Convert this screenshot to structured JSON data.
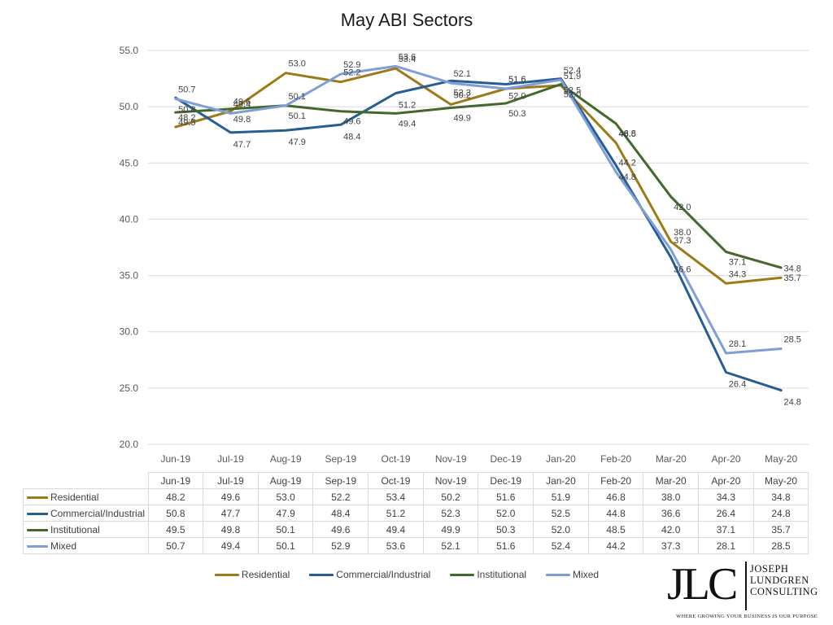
{
  "chart_data": {
    "type": "line",
    "title": "May ABI Sectors",
    "categories": [
      "Jun-19",
      "Jul-19",
      "Aug-19",
      "Sep-19",
      "Oct-19",
      "Nov-19",
      "Dec-19",
      "Jan-20",
      "Feb-20",
      "Mar-20",
      "Apr-20",
      "May-20"
    ],
    "yticks": [
      "20.0",
      "25.0",
      "30.0",
      "35.0",
      "40.0",
      "45.0",
      "50.0",
      "55.0"
    ],
    "ylim": [
      20,
      55
    ],
    "grid": true,
    "legend_position": "bottom",
    "series": [
      {
        "name": "Residential",
        "color": "#9c7a17",
        "values": [
          48.2,
          49.6,
          53.0,
          52.2,
          53.4,
          50.2,
          51.6,
          51.9,
          46.8,
          38.0,
          34.3,
          34.8
        ],
        "labels": [
          "48.2",
          "49.6",
          "53.0",
          "52.2",
          "53.4",
          "50.2",
          "51.6",
          "51.9",
          "46.8",
          "38.0",
          "34.3",
          "34.8"
        ]
      },
      {
        "name": "Commercial/Industrial",
        "color": "#255e91",
        "values": [
          50.8,
          47.7,
          47.9,
          48.4,
          51.2,
          52.3,
          52.0,
          52.5,
          44.8,
          36.6,
          26.4,
          24.8
        ],
        "labels": [
          "50.8",
          "47.7",
          "47.9",
          "48.4",
          "51.2",
          "52.3",
          "52.0",
          "52.5",
          "44.8",
          "36.6",
          "26.4",
          "24.8"
        ]
      },
      {
        "name": "Institutional",
        "color": "#43682b",
        "values": [
          49.5,
          49.8,
          50.1,
          49.6,
          49.4,
          49.9,
          50.3,
          52.0,
          48.5,
          42.0,
          37.1,
          35.7
        ],
        "labels": [
          "49.5",
          "49.8",
          "50.1",
          "49.6",
          "49.4",
          "49.9",
          "50.3",
          "52.0",
          "48.5",
          "42.0",
          "37.1",
          "35.7"
        ]
      },
      {
        "name": "Mixed",
        "color": "#7f9ed8",
        "values": [
          50.7,
          49.4,
          50.1,
          52.9,
          53.6,
          52.1,
          51.6,
          52.4,
          44.2,
          37.3,
          28.1,
          28.5
        ],
        "labels": [
          "50.7",
          "49.4",
          "50.1",
          "52.9",
          "53.6",
          "52.1",
          "51.6",
          "52.4",
          "44.2",
          "37.3",
          "28.1",
          "28.5"
        ]
      }
    ]
  },
  "logo": {
    "monogram": "JLC",
    "name_lines": [
      "JOSEPH",
      "LUNDGREN",
      "CONSULTING"
    ],
    "tagline": "WHERE GROWING YOUR BUSINESS IS OUR PURPOSE"
  }
}
